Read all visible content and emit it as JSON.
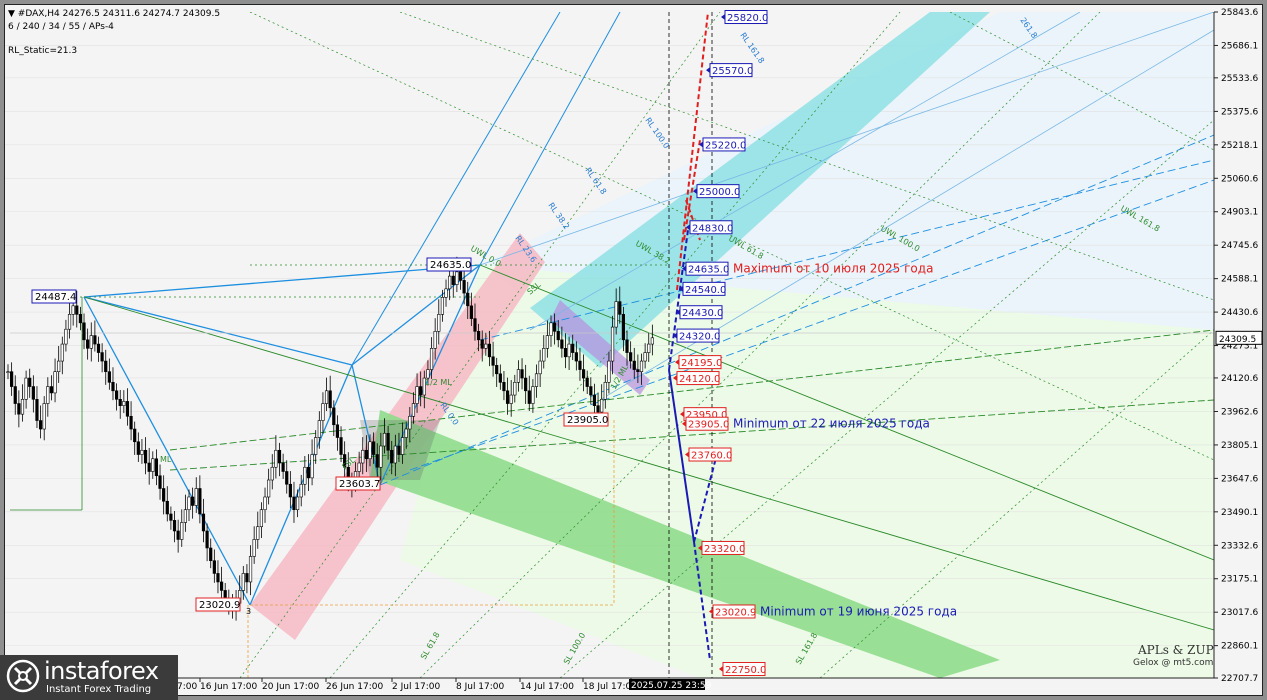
{
  "header": {
    "line1": "▼ #DAX,H4  24276.5 24311.6 24274.7 24309.5",
    "line2": "6 / 240 / 34 / 55 / APs-4",
    "static": "RL_Static=21.3"
  },
  "watermark": {
    "name": "instaforex",
    "tagline": "Instant Forex Trading"
  },
  "credit": {
    "line1": "APLs & ZUP",
    "line2": "Gelox @ mt5.com"
  },
  "colors": {
    "pink_channel": "#f6b9c4",
    "cyan_channel": "#8fe0e4",
    "green_channel": "#8fdc8c",
    "light_blue_zone": "#eaf4fb",
    "light_green_zone": "#ecfbe6",
    "target_red": "#e02020",
    "target_blue": "#1a1ab4",
    "fork_blue": "#1e8fe0",
    "price_line": "#000000"
  },
  "chart_data": {
    "type": "line",
    "symbol": "#DAX",
    "timeframe": "H4",
    "current_price": 24309.5,
    "ylim": [
      22707.7,
      25843.6
    ],
    "y_ticks": [
      25843.6,
      25686.1,
      25533.6,
      25375.6,
      25218.1,
      25060.6,
      24903.1,
      24745.6,
      24588.1,
      24430.6,
      24273.1,
      24120.6,
      23962.6,
      23805.1,
      23647.6,
      23490.1,
      23332.6,
      23175.1,
      23017.6,
      22860.1,
      22707.7
    ],
    "x_ticks": [
      "10 Jun 17:00",
      "16 Jun 17:00",
      "20 Jun 17:00",
      "26 Jun 17:00",
      "2 Jul 17:00",
      "8 Jul 17:00",
      "14 Jul 17:00",
      "18 Jul 17:00",
      "2025.07.25 23:59"
    ],
    "pivots": [
      {
        "label": "24487.4",
        "value": 24487.4,
        "bar": 20
      },
      {
        "label": "23020.9",
        "value": 23020.9,
        "bar": 63
      },
      {
        "label": "23603.7",
        "value": 23603.7,
        "bar": 96
      },
      {
        "label": "24635.0",
        "value": 24635.0,
        "bar": 125
      },
      {
        "label": "23905.0",
        "value": 23905.0,
        "bar": 160
      }
    ],
    "targets_up": [
      {
        "label": "25820.0",
        "value": 25820.0,
        "color": "blue"
      },
      {
        "label": "25570.0",
        "value": 25570.0,
        "color": "blue"
      },
      {
        "label": "25220.0",
        "value": 25220.0,
        "color": "blue"
      },
      {
        "label": "25000.0",
        "value": 25000.0,
        "color": "blue"
      },
      {
        "label": "24830.0",
        "value": 24830.0,
        "color": "blue"
      },
      {
        "label": "24635.0",
        "value": 24635.0,
        "color": "blue"
      },
      {
        "label": "24540.0",
        "value": 24540.0,
        "color": "blue"
      },
      {
        "label": "24430.0",
        "value": 24430.0,
        "color": "blue"
      },
      {
        "label": "24320.0",
        "value": 24320.0,
        "color": "blue"
      }
    ],
    "targets_down": [
      {
        "label": "24195.0",
        "value": 24195.0,
        "color": "red"
      },
      {
        "label": "24120.0",
        "value": 24120.0,
        "color": "red"
      },
      {
        "label": "23950.0",
        "value": 23950.0,
        "color": "red"
      },
      {
        "label": "23905.0",
        "value": 23905.0,
        "color": "red"
      },
      {
        "label": "23760.0",
        "value": 23760.0,
        "color": "red"
      },
      {
        "label": "23320.0",
        "value": 23320.0,
        "color": "red"
      },
      {
        "label": "23020.9",
        "value": 23020.9,
        "color": "red"
      },
      {
        "label": "22750.0",
        "value": 22750.0,
        "color": "red"
      }
    ],
    "annotations": [
      {
        "text": "Maximum от 10 июля 2025 года",
        "value": 24635.0,
        "color": "red"
      },
      {
        "text": "Minimum от 22 июля 2025 года",
        "value": 23905.0,
        "color": "blue"
      },
      {
        "text": "Minimum от 19 июня 2025 года",
        "value": 23020.9,
        "color": "blue"
      }
    ],
    "line_labels": [
      "UWL 161.8",
      "UWL 100.0",
      "UWL 61.8",
      "UWL 38.2",
      "UWL 0.0",
      "RL 161.8",
      "RL 100.0",
      "RL 61.8",
      "RL 38.2",
      "RL 23.6",
      "RL 0.0",
      "SL 61.8",
      "SL 100.0",
      "SL 161.8",
      "261.8",
      "ML",
      "SSL",
      "FSL",
      "1/2 ML",
      "1/2 ML"
    ],
    "close_series": [
      24150,
      24080,
      24000,
      23950,
      24020,
      24120,
      24080,
      24020,
      23920,
      23880,
      24000,
      24080,
      24050,
      24150,
      24200,
      24280,
      24350,
      24420,
      24460,
      24420,
      24380,
      24300,
      24260,
      24320,
      24280,
      24240,
      24200,
      24150,
      24100,
      24060,
      24020,
      23990,
      24010,
      23940,
      23880,
      23820,
      23760,
      23780,
      23720,
      23680,
      23740,
      23660,
      23600,
      23540,
      23480,
      23450,
      23400,
      23360,
      23440,
      23500,
      23560,
      23520,
      23600,
      23480,
      23400,
      23320,
      23260,
      23200,
      23160,
      23120,
      23080,
      23050,
      23040,
      23060,
      23120,
      23200,
      23160,
      23280,
      23360,
      23420,
      23500,
      23560,
      23640,
      23700,
      23780,
      23720,
      23680,
      23620,
      23560,
      23500,
      23560,
      23620,
      23700,
      23650,
      23760,
      23840,
      23920,
      24000,
      24060,
      23980,
      23900,
      23840,
      23760,
      23700,
      23640,
      23620,
      23680,
      23720,
      23780,
      23740,
      23820,
      23760,
      23700,
      23800,
      23860,
      23780,
      23720,
      23800,
      23760,
      23840,
      23880,
      23940,
      24000,
      24080,
      24040,
      24120,
      24160,
      24260,
      24340,
      24420,
      24500,
      24540,
      24600,
      24560,
      24620,
      24580,
      24520,
      24460,
      24400,
      24340,
      24300,
      24260,
      24280,
      24220,
      24180,
      24140,
      24100,
      24060,
      24000,
      24040,
      24100,
      24160,
      24120,
      24060,
      24000,
      24080,
      24140,
      24200,
      24260,
      24320,
      24380,
      24340,
      24300,
      24260,
      24220,
      24280,
      24240,
      24200,
      24160,
      24120,
      24080,
      24040,
      23990,
      23960,
      24020,
      24100,
      24200,
      24360,
      24480,
      24420,
      24300,
      24240,
      24200,
      24160,
      24150,
      24200,
      24240,
      24280,
      24309.5
    ]
  }
}
